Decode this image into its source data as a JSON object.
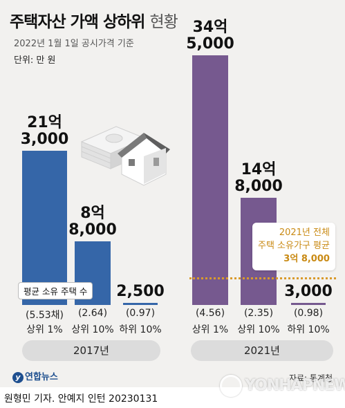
{
  "title": {
    "bold": "주택자산 가액 상하위",
    "light": "현황"
  },
  "subtitle": "2022년 1월 1일 공시가격 기준",
  "unit": "단위: 만 원",
  "colors": {
    "y2017": "#3566a8",
    "y2021": "#76598f",
    "avg_line": "#d99a2b",
    "avg_text": "#c98a14"
  },
  "chart_data": {
    "type": "bar",
    "unit": "만 원",
    "groups": [
      {
        "year": "2017년",
        "bars": [
          {
            "category": "상위 1%",
            "value": 213000,
            "label_top": "21억",
            "label_bottom": "3,000",
            "count": "(5.53채)"
          },
          {
            "category": "상위 10%",
            "value": 88000,
            "label_top": "8억",
            "label_bottom": "8,000",
            "count": "(2.64)"
          },
          {
            "category": "하위 10%",
            "value": 2500,
            "label_top": "",
            "label_bottom": "2,500",
            "count": "(0.97)"
          }
        ]
      },
      {
        "year": "2021년",
        "bars": [
          {
            "category": "상위 1%",
            "value": 345000,
            "label_top": "34억",
            "label_bottom": "5,000",
            "count": "(4.56)"
          },
          {
            "category": "상위 10%",
            "value": 148000,
            "label_top": "14억",
            "label_bottom": "8,000",
            "count": "(2.35)"
          },
          {
            "category": "하위 10%",
            "value": 3000,
            "label_top": "",
            "label_bottom": "3,000",
            "count": "(0.98)"
          }
        ]
      }
    ],
    "average_2021": {
      "value": 38000,
      "lines": [
        "2021년 전체",
        "주택 소유가구 평균",
        "3억 8,000"
      ]
    },
    "count_note": "평균 소유 주택 수"
  },
  "source": "자료: 통계청",
  "logo": {
    "mark": "y",
    "name": "연합뉴스"
  },
  "watermark": "YONHAPNEWS",
  "credit": "원형민 기자. 안예지 인턴  20230131"
}
